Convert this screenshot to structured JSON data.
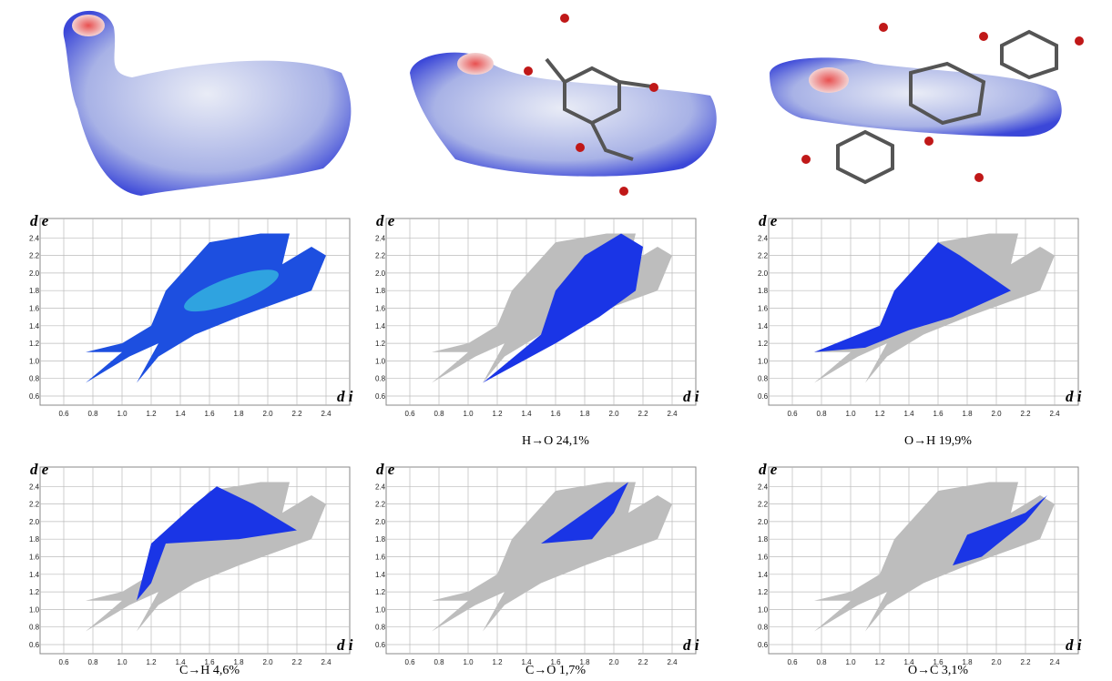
{
  "axis_ticks": [
    "0.6",
    "0.8",
    "1.0",
    "1.2",
    "1.4",
    "1.6",
    "1.8",
    "2.0",
    "2.2",
    "2.4"
  ],
  "panels": [
    {
      "y_label": "d e",
      "x_label": "d i"
    },
    {
      "y_label": "d e",
      "x_label": "d i",
      "caption": "H→O 24,1%"
    },
    {
      "y_label": "d e",
      "x_label": "d i",
      "caption": "O→H 19,9%"
    },
    {
      "y_label": "d e",
      "x_label": "d i",
      "caption": "C→H 4,6%"
    },
    {
      "y_label": "d e",
      "x_label": "d i",
      "caption": "C→O 1,7%"
    },
    {
      "y_label": "d e",
      "x_label": "d i",
      "caption": "O→C 3,1%"
    }
  ]
}
